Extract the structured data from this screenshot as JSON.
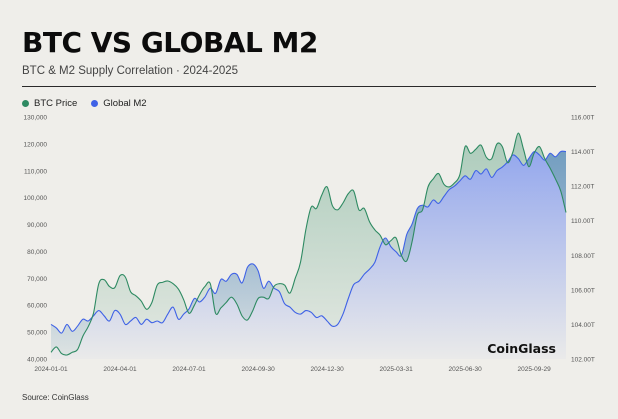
{
  "title": "BTC VS GLOBAL M2",
  "subtitle": "BTC & M2 Supply Correlation · 2024-2025",
  "brand": "CoinGlass",
  "source": "Source: CoinGlass",
  "colors": {
    "btc": "#2e8a62",
    "m2": "#3f62e6",
    "background": "#efeeea"
  },
  "legend": [
    {
      "label": "BTC Price",
      "color": "#2e8a62"
    },
    {
      "label": "Global M2",
      "color": "#3f62e6"
    }
  ],
  "chart_data": {
    "type": "line",
    "title": "BTC VS GLOBAL M2",
    "x_tick_labels": [
      "2024-01-01",
      "2024-04-01",
      "2024-07-01",
      "2024-09-30",
      "2024-12-30",
      "2025-03-31",
      "2025-06-30",
      "2025-09-29"
    ],
    "x_range": [
      "2024-01-01",
      "2025-11-10"
    ],
    "y_left": {
      "ylim": [
        40000,
        130000
      ],
      "ticks": [
        "40,000",
        "50,000",
        "60,000",
        "70,000",
        "80,000",
        "90,000",
        "100,000",
        "110,000",
        "120,000",
        "130,000"
      ]
    },
    "y_right": {
      "ylim": [
        102,
        116
      ],
      "ticks": [
        "102.00T",
        "104.00T",
        "106.00T",
        "108.00T",
        "110.00T",
        "112.00T",
        "114.00T",
        "116.00T"
      ]
    },
    "grid": false,
    "legend_position": "top-left",
    "series": [
      {
        "name": "BTC Price",
        "axis": "left",
        "x": [
          "2024-01-01",
          "2024-01-08",
          "2024-01-15",
          "2024-01-22",
          "2024-01-29",
          "2024-02-05",
          "2024-02-12",
          "2024-02-19",
          "2024-02-26",
          "2024-03-04",
          "2024-03-11",
          "2024-03-18",
          "2024-03-25",
          "2024-04-01",
          "2024-04-08",
          "2024-04-15",
          "2024-04-22",
          "2024-04-29",
          "2024-05-06",
          "2024-05-13",
          "2024-05-20",
          "2024-05-27",
          "2024-06-03",
          "2024-06-10",
          "2024-06-17",
          "2024-06-24",
          "2024-07-01",
          "2024-07-08",
          "2024-07-15",
          "2024-07-22",
          "2024-07-29",
          "2024-08-05",
          "2024-08-12",
          "2024-08-19",
          "2024-08-26",
          "2024-09-02",
          "2024-09-09",
          "2024-09-16",
          "2024-09-23",
          "2024-09-30",
          "2024-10-07",
          "2024-10-14",
          "2024-10-21",
          "2024-10-28",
          "2024-11-04",
          "2024-11-11",
          "2024-11-18",
          "2024-11-25",
          "2024-12-02",
          "2024-12-09",
          "2024-12-16",
          "2024-12-23",
          "2024-12-30",
          "2025-01-06",
          "2025-01-13",
          "2025-01-20",
          "2025-01-27",
          "2025-02-03",
          "2025-02-10",
          "2025-02-17",
          "2025-02-24",
          "2025-03-03",
          "2025-03-10",
          "2025-03-17",
          "2025-03-24",
          "2025-03-31",
          "2025-04-07",
          "2025-04-14",
          "2025-04-21",
          "2025-04-28",
          "2025-05-05",
          "2025-05-12",
          "2025-05-19",
          "2025-05-26",
          "2025-06-02",
          "2025-06-09",
          "2025-06-16",
          "2025-06-23",
          "2025-06-30",
          "2025-07-07",
          "2025-07-14",
          "2025-07-21",
          "2025-07-28",
          "2025-08-04",
          "2025-08-11",
          "2025-08-18",
          "2025-08-25",
          "2025-09-01",
          "2025-09-08",
          "2025-09-15",
          "2025-09-22",
          "2025-09-29",
          "2025-10-06",
          "2025-10-13",
          "2025-10-20",
          "2025-10-27",
          "2025-11-03",
          "2025-11-10"
        ],
        "values": [
          42500,
          44500,
          42000,
          41500,
          42500,
          43500,
          48500,
          52000,
          57000,
          68000,
          69500,
          67000,
          66500,
          71000,
          70500,
          65000,
          63500,
          61500,
          58500,
          61000,
          67500,
          68500,
          69000,
          68000,
          66000,
          62000,
          57000,
          60000,
          64000,
          67000,
          68000,
          57000,
          59000,
          61000,
          63000,
          60500,
          56000,
          54500,
          58000,
          62500,
          63000,
          62500,
          67000,
          68000,
          67500,
          64500,
          70000,
          76000,
          88000,
          96500,
          96000,
          101000,
          104000,
          97000,
          95500,
          98000,
          101500,
          102500,
          95500,
          96000,
          91000,
          88000,
          86000,
          82500,
          84000,
          85000,
          78500,
          76500,
          83500,
          93500,
          95500,
          104000,
          107000,
          109000,
          105000,
          104000,
          105500,
          108500,
          119000,
          116500,
          118000,
          119500,
          115000,
          114500,
          120000,
          119000,
          113000,
          117000,
          124000,
          118000,
          111500,
          116500,
          119000,
          114500,
          111000,
          107000,
          102500,
          94500
        ]
      },
      {
        "name": "Global M2",
        "axis": "right",
        "x": [
          "2024-01-01",
          "2024-01-08",
          "2024-01-15",
          "2024-01-22",
          "2024-01-29",
          "2024-02-05",
          "2024-02-12",
          "2024-02-19",
          "2024-02-26",
          "2024-03-04",
          "2024-03-11",
          "2024-03-18",
          "2024-03-25",
          "2024-04-01",
          "2024-04-08",
          "2024-04-15",
          "2024-04-22",
          "2024-04-29",
          "2024-05-06",
          "2024-05-13",
          "2024-05-20",
          "2024-05-27",
          "2024-06-03",
          "2024-06-10",
          "2024-06-17",
          "2024-06-24",
          "2024-07-01",
          "2024-07-08",
          "2024-07-15",
          "2024-07-22",
          "2024-07-29",
          "2024-08-05",
          "2024-08-12",
          "2024-08-19",
          "2024-08-26",
          "2024-09-02",
          "2024-09-09",
          "2024-09-16",
          "2024-09-23",
          "2024-09-30",
          "2024-10-07",
          "2024-10-14",
          "2024-10-21",
          "2024-10-28",
          "2024-11-04",
          "2024-11-11",
          "2024-11-18",
          "2024-11-25",
          "2024-12-02",
          "2024-12-09",
          "2024-12-16",
          "2024-12-23",
          "2024-12-30",
          "2025-01-06",
          "2025-01-13",
          "2025-01-20",
          "2025-01-27",
          "2025-02-03",
          "2025-02-10",
          "2025-02-17",
          "2025-02-24",
          "2025-03-03",
          "2025-03-10",
          "2025-03-17",
          "2025-03-24",
          "2025-03-31",
          "2025-04-07",
          "2025-04-14",
          "2025-04-21",
          "2025-04-28",
          "2025-05-05",
          "2025-05-12",
          "2025-05-19",
          "2025-05-26",
          "2025-06-02",
          "2025-06-09",
          "2025-06-16",
          "2025-06-23",
          "2025-06-30",
          "2025-07-07",
          "2025-07-14",
          "2025-07-21",
          "2025-07-28",
          "2025-08-04",
          "2025-08-11",
          "2025-08-18",
          "2025-08-25",
          "2025-09-01",
          "2025-09-08",
          "2025-09-15",
          "2025-09-22",
          "2025-09-29",
          "2025-10-06",
          "2025-10-13",
          "2025-10-20",
          "2025-10-27",
          "2025-11-03",
          "2025-11-10"
        ],
        "values": [
          104.0,
          103.8,
          103.5,
          104.0,
          103.6,
          103.9,
          104.3,
          104.2,
          104.5,
          104.8,
          104.5,
          104.2,
          104.8,
          104.6,
          104.0,
          104.2,
          104.4,
          104.0,
          104.3,
          104.1,
          104.2,
          104.1,
          104.6,
          105.0,
          104.3,
          104.6,
          104.9,
          105.5,
          105.3,
          105.6,
          106.1,
          105.8,
          106.6,
          106.5,
          106.9,
          106.9,
          106.4,
          107.3,
          107.5,
          107.1,
          106.1,
          106.5,
          106.1,
          105.9,
          105.2,
          105.0,
          104.7,
          104.6,
          104.8,
          104.7,
          104.4,
          104.5,
          104.2,
          103.9,
          104.0,
          104.6,
          105.5,
          106.3,
          106.5,
          106.9,
          107.2,
          107.6,
          108.5,
          109.0,
          108.5,
          108.2,
          108.0,
          109.2,
          109.8,
          110.7,
          110.9,
          110.8,
          111.2,
          111.0,
          111.4,
          111.8,
          112.0,
          112.3,
          112.6,
          112.4,
          112.9,
          112.7,
          113.0,
          112.5,
          112.9,
          113.1,
          113.4,
          113.8,
          113.6,
          113.2,
          113.6,
          114.0,
          113.8,
          113.5,
          113.9,
          113.7,
          114.0,
          114.0
        ]
      }
    ]
  }
}
